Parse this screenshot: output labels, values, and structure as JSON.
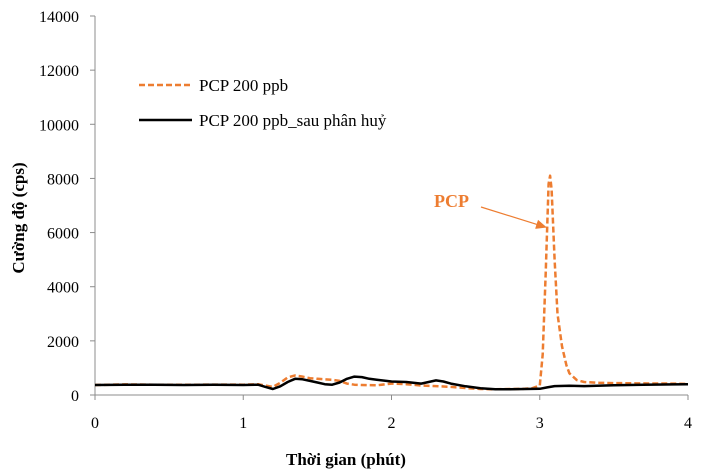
{
  "chart_data": {
    "type": "line",
    "title": "",
    "xlabel": "Thời gian (phút)",
    "ylabel": "Cường độ (cps)",
    "xlim": [
      0,
      4
    ],
    "ylim": [
      0,
      14000
    ],
    "xticks": [
      0,
      1,
      2,
      3,
      4
    ],
    "yticks": [
      0,
      2000,
      4000,
      6000,
      8000,
      10000,
      12000,
      14000
    ],
    "grid": false,
    "legend_position": "top-left",
    "series": [
      {
        "name": "PCP 200 ppb",
        "color": "#ED7D31",
        "style": "dashed",
        "x": [
          0,
          0.2,
          0.4,
          0.6,
          0.8,
          1.0,
          1.1,
          1.15,
          1.2,
          1.25,
          1.3,
          1.35,
          1.4,
          1.45,
          1.5,
          1.55,
          1.6,
          1.65,
          1.7,
          1.75,
          1.8,
          1.9,
          2.0,
          2.1,
          2.2,
          2.3,
          2.4,
          2.5,
          2.6,
          2.7,
          2.8,
          2.9,
          2.95,
          3.0,
          3.02,
          3.04,
          3.06,
          3.07,
          3.08,
          3.1,
          3.12,
          3.15,
          3.18,
          3.2,
          3.25,
          3.3,
          3.4,
          3.5,
          3.7,
          3.9,
          4.0
        ],
        "y": [
          370,
          390,
          380,
          375,
          385,
          380,
          400,
          350,
          300,
          450,
          650,
          720,
          680,
          620,
          600,
          580,
          560,
          520,
          420,
          380,
          370,
          360,
          420,
          400,
          350,
          330,
          300,
          260,
          220,
          210,
          220,
          230,
          250,
          350,
          1500,
          4500,
          7800,
          8100,
          7600,
          5000,
          3000,
          1800,
          1100,
          800,
          550,
          480,
          450,
          440,
          430,
          420,
          410
        ]
      },
      {
        "name": "PCP 200 ppb_sau phân huỷ",
        "color": "#000000",
        "style": "solid",
        "x": [
          0,
          0.2,
          0.4,
          0.6,
          0.8,
          1.0,
          1.1,
          1.15,
          1.2,
          1.25,
          1.3,
          1.35,
          1.4,
          1.45,
          1.5,
          1.55,
          1.6,
          1.65,
          1.7,
          1.75,
          1.8,
          1.85,
          1.9,
          2.0,
          2.1,
          2.2,
          2.25,
          2.3,
          2.35,
          2.4,
          2.5,
          2.6,
          2.7,
          2.8,
          2.9,
          3.0,
          3.05,
          3.1,
          3.2,
          3.3,
          3.5,
          3.7,
          3.9,
          4.0
        ],
        "y": [
          370,
          380,
          375,
          370,
          380,
          370,
          380,
          300,
          220,
          320,
          480,
          600,
          580,
          520,
          460,
          400,
          380,
          460,
          600,
          680,
          660,
          600,
          560,
          500,
          480,
          420,
          480,
          540,
          500,
          420,
          320,
          250,
          210,
          210,
          220,
          230,
          280,
          330,
          340,
          330,
          360,
          380,
          390,
          400
        ]
      }
    ],
    "annotations": [
      {
        "text": "PCP",
        "color": "#ED7D31",
        "target_x": 3.04,
        "target_y": 6200
      }
    ]
  }
}
